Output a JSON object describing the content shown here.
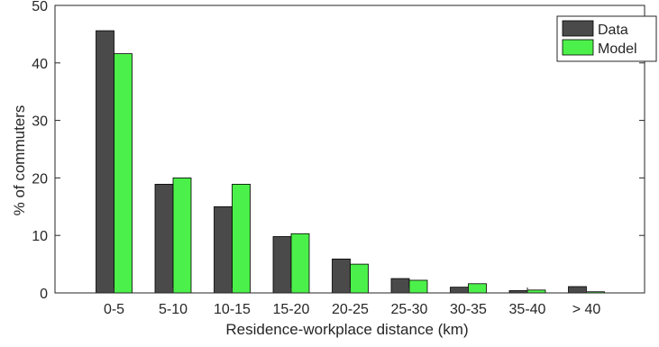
{
  "chart_data": {
    "type": "bar",
    "title": "",
    "xlabel": "Residence-workplace distance (km)",
    "ylabel": "% of commuters",
    "categories": [
      "0-5",
      "5-10",
      "10-15",
      "15-20",
      "20-25",
      "25-30",
      "30-35",
      "35-40",
      "> 40"
    ],
    "ylim": [
      0,
      50
    ],
    "yticks": [
      "0",
      "10",
      "20",
      "30",
      "40",
      "50"
    ],
    "grid": false,
    "legend_position": "top-right",
    "series": [
      {
        "name": "Data",
        "color": "#4a4a4a",
        "values": [
          45.6,
          18.9,
          15.0,
          9.8,
          5.9,
          2.5,
          1.0,
          0.4,
          1.1
        ]
      },
      {
        "name": "Model",
        "color": "#4cf04a",
        "values": [
          41.6,
          20.0,
          18.9,
          10.3,
          5.0,
          2.2,
          1.6,
          0.5,
          0.2
        ]
      }
    ]
  }
}
